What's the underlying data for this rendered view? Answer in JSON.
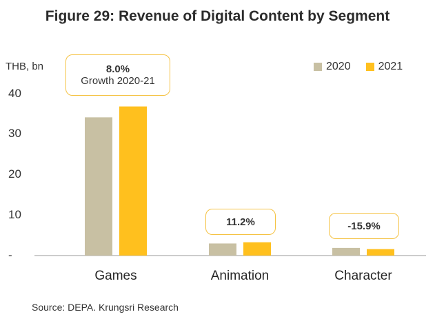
{
  "chart_data": {
    "type": "bar",
    "title": "Figure 29: Revenue of Digital Content by Segment",
    "ylabel": "THB, bn",
    "categories": [
      "Games",
      "Animation",
      "Character"
    ],
    "series": [
      {
        "name": "2020",
        "values": [
          34.3,
          3.0,
          1.9
        ],
        "color": "#c8c0a3"
      },
      {
        "name": "2021",
        "values": [
          37.0,
          3.3,
          1.6
        ],
        "color": "#ffc01e"
      }
    ],
    "ylim": [
      0,
      40
    ],
    "yticks": [
      "-",
      "10",
      "20",
      "30",
      "40"
    ],
    "grid": false,
    "legend_position": "top-right",
    "callouts": [
      {
        "value": "8.0%",
        "text": "Growth 2020-21"
      },
      {
        "value": "11.2%",
        "text": ""
      },
      {
        "value": "-15.9%",
        "text": ""
      }
    ]
  },
  "source": "Source: DEPA. Krungsri Research"
}
